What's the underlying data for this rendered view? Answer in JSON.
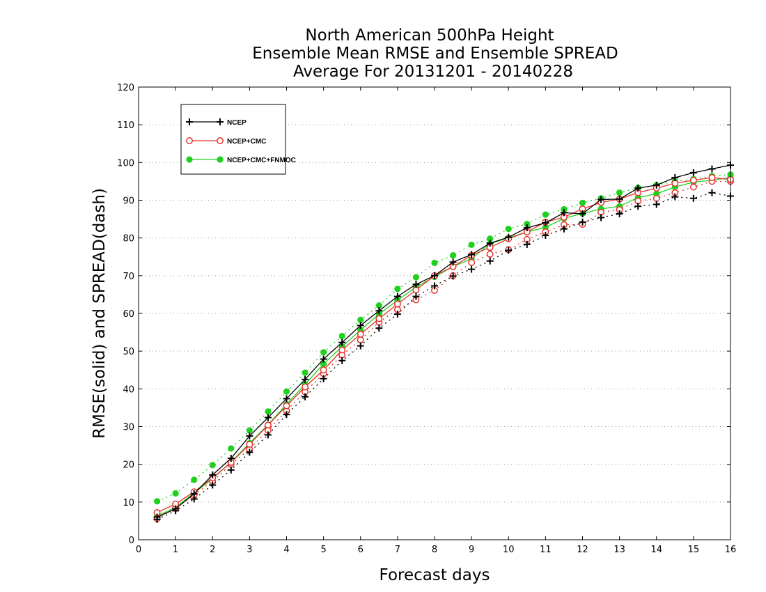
{
  "chart_data": {
    "type": "line",
    "title": [
      "North American 500hPa Height",
      "Ensemble Mean RMSE and Ensemble SPREAD",
      "Average For 20131201 - 20140228"
    ],
    "xlabel": "Forecast days",
    "ylabel": "RMSE(solid) and SPREAD(dash)",
    "xlim": [
      0,
      16
    ],
    "ylim": [
      0,
      120
    ],
    "xticks": [
      "0",
      "1",
      "2",
      "3",
      "4",
      "5",
      "6",
      "7",
      "8",
      "9",
      "10",
      "11",
      "12",
      "13",
      "14",
      "15",
      "16"
    ],
    "yticks": [
      "0",
      "10",
      "20",
      "30",
      "40",
      "50",
      "60",
      "70",
      "80",
      "90",
      "100",
      "110",
      "120"
    ],
    "grid": "horizontal dotted",
    "legend_position": "top-left",
    "x": [
      0.5,
      1,
      1.5,
      2,
      2.5,
      3,
      3.5,
      4,
      4.5,
      5,
      5.5,
      6,
      6.5,
      7,
      7.5,
      8,
      8.5,
      9,
      9.5,
      10,
      10.5,
      11,
      11.5,
      12,
      12.5,
      13,
      13.5,
      14,
      14.5,
      15,
      15.5,
      16
    ],
    "series": [
      {
        "name": "NCEP",
        "color": "#000000",
        "marker": "plus",
        "rmse": [
          6,
          8.2,
          12.2,
          17.2,
          21.6,
          27.5,
          32.4,
          37.4,
          42.5,
          47.9,
          52.3,
          56.8,
          60.7,
          64.5,
          67.7,
          70,
          73.6,
          75.6,
          78.6,
          80.2,
          82.7,
          84,
          86.7,
          86.4,
          90.2,
          90.3,
          93.2,
          94,
          96,
          97.3,
          98.3,
          99.3
        ],
        "spread": [
          5.4,
          7.7,
          10.8,
          14.5,
          18.5,
          23.2,
          27.8,
          33.2,
          37.9,
          42.7,
          47.5,
          51.4,
          56.1,
          59.8,
          64.5,
          67.3,
          69.9,
          71.7,
          73.9,
          76.7,
          78.3,
          80.7,
          82.4,
          84.2,
          85.4,
          86.4,
          88.4,
          88.9,
          90.9,
          90.5,
          92,
          91.1
        ]
      },
      {
        "name": "NCEP+CMC",
        "color": "#e8312b",
        "marker": "open-circle",
        "rmse": [
          7.2,
          9.5,
          12.7,
          16.4,
          20.5,
          25.3,
          30.4,
          35.5,
          40.5,
          45,
          50.3,
          54.5,
          58.6,
          62.5,
          66.2,
          70,
          72.4,
          75.4,
          77.5,
          79.8,
          81.6,
          84.2,
          85.5,
          87.7,
          89.4,
          90.3,
          92,
          93.2,
          94.5,
          95.3,
          96,
          95.5
        ],
        "spread": [
          5.6,
          8.3,
          11.9,
          15.5,
          20,
          24,
          29,
          34.2,
          39.2,
          44,
          49,
          53,
          57.7,
          61,
          63.6,
          66.1,
          70,
          73.5,
          75.7,
          76.9,
          79.6,
          81.6,
          83.5,
          83.6,
          86.8,
          87.5,
          89.8,
          90.5,
          92,
          93.5,
          95,
          95
        ]
      },
      {
        "name": "NCEP+CMC+FNMOC",
        "color": "#1fd01f",
        "marker": "filled-circle",
        "rmse": [
          6.3,
          8.6,
          12.4,
          16.2,
          20.6,
          25.6,
          30.5,
          35.9,
          41.2,
          46.6,
          51.2,
          55.6,
          59.8,
          63.5,
          67,
          69.7,
          72.4,
          74.5,
          78.5,
          80,
          81.6,
          82.8,
          85.2,
          86.5,
          87.7,
          88.4,
          90.7,
          91.7,
          93.5,
          94.8,
          95.3,
          96
        ],
        "spread": [
          10.2,
          12.3,
          15.9,
          19.8,
          24.2,
          29,
          34,
          39.3,
          44.3,
          49.7,
          54,
          58.3,
          62.1,
          66.5,
          69.6,
          73.4,
          75.4,
          78.2,
          79.8,
          82.4,
          83.7,
          86.2,
          87.6,
          89.3,
          90.5,
          92,
          93.3,
          94,
          95,
          95.6,
          96.4,
          96.8
        ]
      }
    ]
  }
}
